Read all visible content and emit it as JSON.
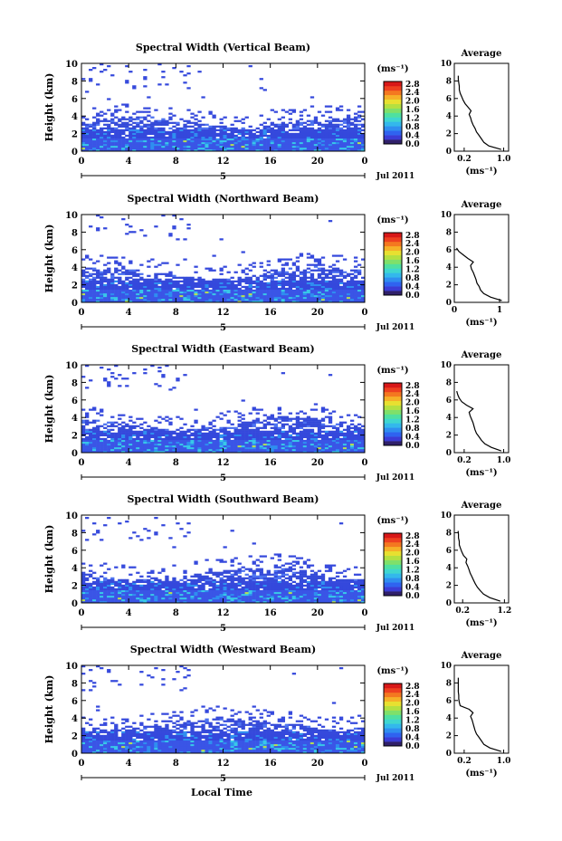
{
  "figure": {
    "x_title": "Local Time",
    "date_label": "Jul 2011",
    "day_label": "5",
    "unit_label": "(ms⁻¹)",
    "avg_title": "Average",
    "avg_xlabel": "(ms⁻¹)",
    "ylabel": "Height (km)",
    "x_ticks": [
      "0",
      "4",
      "8",
      "12",
      "16",
      "20",
      "0"
    ],
    "y_ticks": [
      "0",
      "2",
      "4",
      "6",
      "8",
      "10"
    ],
    "colorbar_ticks": [
      "2.8",
      "2.4",
      "2.0",
      "1.6",
      "1.2",
      "0.8",
      "0.4",
      "0.0"
    ],
    "colors": {
      "bg_low": "#2e3fd6",
      "mid": "#4a66f0",
      "cyan": "#38c8e8",
      "green": "#7fe07a",
      "yellow": "#f0e040"
    }
  },
  "chart_data": [
    {
      "type": "heatmap",
      "title": "Spectral Width (Vertical Beam)",
      "xlim": [
        0,
        24
      ],
      "ylim": [
        0,
        10
      ],
      "cbar_range": [
        0.0,
        2.8
      ],
      "avg": {
        "x_ticks": [
          "0.2",
          "1.0"
        ],
        "xlim": [
          0.0,
          1.1
        ],
        "heights": [
          0.2,
          0.6,
          1.0,
          1.4,
          1.8,
          2.2,
          2.6,
          3.0,
          3.4,
          3.8,
          4.2,
          4.6,
          5.0,
          5.4,
          5.8,
          6.2,
          6.6,
          7.0,
          7.4,
          7.8,
          8.2,
          8.6
        ],
        "values": [
          0.95,
          0.7,
          0.6,
          0.55,
          0.5,
          0.45,
          0.42,
          0.38,
          0.35,
          0.33,
          0.3,
          0.34,
          0.28,
          0.22,
          0.18,
          0.15,
          0.12,
          0.1,
          0.1,
          0.09,
          0.08,
          0.08
        ]
      }
    },
    {
      "type": "heatmap",
      "title": "Spectral Width (Northward Beam)",
      "xlim": [
        0,
        24
      ],
      "ylim": [
        0,
        10
      ],
      "cbar_range": [
        0.0,
        2.8
      ],
      "avg": {
        "x_ticks": [
          "0",
          "1"
        ],
        "xlim": [
          0.0,
          1.2
        ],
        "heights": [
          0.2,
          0.6,
          1.0,
          1.4,
          1.8,
          2.2,
          2.6,
          3.0,
          3.4,
          3.8,
          4.2,
          4.6,
          5.0,
          5.4,
          5.8,
          6.2
        ],
        "values": [
          1.05,
          0.8,
          0.65,
          0.58,
          0.55,
          0.5,
          0.48,
          0.45,
          0.42,
          0.38,
          0.36,
          0.42,
          0.3,
          0.2,
          0.1,
          0.05
        ]
      }
    },
    {
      "type": "heatmap",
      "title": "Spectral Width (Eastward Beam)",
      "xlim": [
        0,
        24
      ],
      "ylim": [
        0,
        10
      ],
      "cbar_range": [
        0.0,
        2.8
      ],
      "avg": {
        "x_ticks": [
          "0.2",
          "1.0"
        ],
        "xlim": [
          0.0,
          1.1
        ],
        "heights": [
          0.2,
          0.6,
          1.0,
          1.4,
          1.8,
          2.2,
          2.6,
          3.0,
          3.4,
          3.8,
          4.2,
          4.6,
          5.0,
          5.4,
          5.8,
          6.2,
          6.6,
          7.0
        ],
        "values": [
          0.95,
          0.75,
          0.62,
          0.55,
          0.5,
          0.45,
          0.42,
          0.4,
          0.38,
          0.35,
          0.32,
          0.3,
          0.38,
          0.25,
          0.15,
          0.1,
          0.07,
          0.05
        ]
      }
    },
    {
      "type": "heatmap",
      "title": "Spectral Width (Southward Beam)",
      "xlim": [
        0,
        24
      ],
      "ylim": [
        0,
        10
      ],
      "cbar_range": [
        0.0,
        2.8
      ],
      "avg": {
        "x_ticks": [
          "0.2",
          "1.2"
        ],
        "xlim": [
          0.0,
          1.3
        ],
        "heights": [
          0.2,
          0.6,
          1.0,
          1.4,
          1.8,
          2.2,
          2.6,
          3.0,
          3.4,
          3.8,
          4.2,
          4.6,
          5.0,
          5.4,
          5.8,
          6.2,
          6.6,
          7.0,
          7.4,
          7.8,
          8.2
        ],
        "values": [
          1.1,
          0.85,
          0.7,
          0.62,
          0.55,
          0.5,
          0.46,
          0.42,
          0.38,
          0.35,
          0.32,
          0.28,
          0.3,
          0.22,
          0.18,
          0.15,
          0.12,
          0.12,
          0.1,
          0.1,
          0.09
        ]
      }
    },
    {
      "type": "heatmap",
      "title": "Spectral Width (Westward Beam)",
      "xlim": [
        0,
        24
      ],
      "ylim": [
        0,
        10
      ],
      "cbar_range": [
        0.0,
        2.8
      ],
      "avg": {
        "x_ticks": [
          "0.2",
          "1.0"
        ],
        "xlim": [
          0.0,
          1.1
        ],
        "heights": [
          0.2,
          0.6,
          1.0,
          1.4,
          1.8,
          2.2,
          2.6,
          3.0,
          3.4,
          3.8,
          4.2,
          4.6,
          5.0,
          5.4,
          5.8,
          6.2,
          6.6,
          7.0,
          7.4,
          7.8,
          8.2,
          8.6
        ],
        "values": [
          0.95,
          0.72,
          0.6,
          0.55,
          0.5,
          0.45,
          0.42,
          0.4,
          0.38,
          0.36,
          0.33,
          0.38,
          0.3,
          0.12,
          0.1,
          0.09,
          0.09,
          0.08,
          0.08,
          0.08,
          0.08,
          0.08
        ]
      }
    }
  ]
}
